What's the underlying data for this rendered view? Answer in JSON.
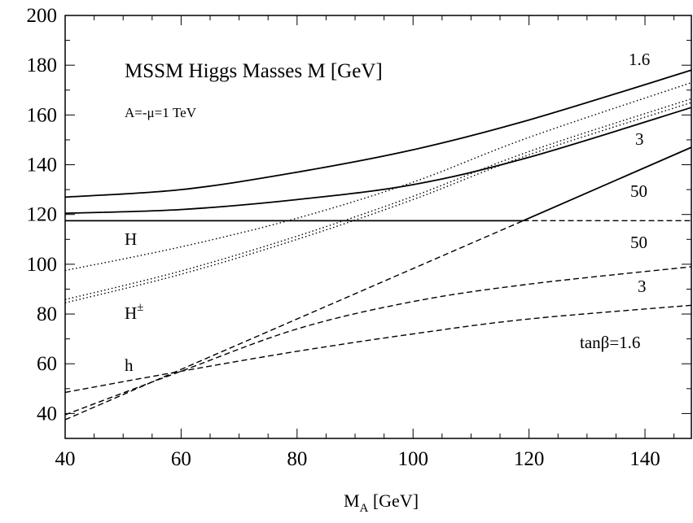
{
  "chart_data": {
    "type": "line",
    "title": "MSSM Higgs Masses M [GeV]",
    "subtitle": "A=-μ=1 TeV",
    "xlabel_main": "M",
    "xlabel_sub": "A",
    "xlabel_unit": " [GeV]",
    "xlim": [
      40,
      148
    ],
    "ylim": [
      30,
      200
    ],
    "x_ticks": [
      40,
      60,
      80,
      100,
      120,
      140
    ],
    "y_ticks": [
      40,
      60,
      80,
      100,
      120,
      140,
      160,
      180,
      200
    ],
    "x_minor_step": 5,
    "y_minor_step": 10,
    "series": [
      {
        "style": "solid",
        "points": [
          [
            40,
            127
          ],
          [
            60,
            130
          ],
          [
            80,
            137
          ],
          [
            100,
            146
          ],
          [
            120,
            158
          ],
          [
            148,
            178
          ]
        ]
      },
      {
        "style": "solid",
        "points": [
          [
            40,
            120.5
          ],
          [
            60,
            122
          ],
          [
            80,
            126
          ],
          [
            100,
            132
          ],
          [
            120,
            143
          ],
          [
            148,
            163
          ]
        ]
      },
      {
        "style": "solid",
        "points": [
          [
            40,
            117.5
          ],
          [
            119,
            117.5
          ]
        ]
      },
      {
        "style": "solid",
        "points": [
          [
            119,
            117.5
          ],
          [
            148,
            147
          ]
        ]
      },
      {
        "style": "dashed",
        "points": [
          [
            119,
            117.5
          ],
          [
            148,
            117.5
          ]
        ]
      },
      {
        "style": "dashed",
        "points": [
          [
            40,
            37.5
          ],
          [
            119,
            117.5
          ]
        ]
      },
      {
        "style": "dashed",
        "points": [
          [
            40,
            39.5
          ],
          [
            60,
            57
          ],
          [
            80,
            74
          ],
          [
            100,
            85
          ],
          [
            120,
            92
          ],
          [
            148,
            99
          ]
        ]
      },
      {
        "style": "dashed",
        "points": [
          [
            40,
            48.5
          ],
          [
            60,
            57
          ],
          [
            80,
            65
          ],
          [
            100,
            72
          ],
          [
            120,
            78
          ],
          [
            148,
            83.5
          ]
        ]
      },
      {
        "style": "dotted",
        "points": [
          [
            40,
            97.5
          ],
          [
            60,
            107
          ],
          [
            80,
            118.5
          ],
          [
            100,
            133
          ],
          [
            120,
            151
          ],
          [
            148,
            173
          ]
        ]
      },
      {
        "style": "dotted",
        "points": [
          [
            40,
            84.5
          ],
          [
            60,
            96
          ],
          [
            80,
            110
          ],
          [
            100,
            126
          ],
          [
            120,
            144
          ],
          [
            148,
            165
          ]
        ]
      },
      {
        "style": "dotted",
        "points": [
          [
            40,
            85.8
          ],
          [
            60,
            97.3
          ],
          [
            80,
            111.3
          ],
          [
            100,
            127.3
          ],
          [
            120,
            145.3
          ],
          [
            148,
            166.5
          ]
        ]
      }
    ],
    "annotations": {
      "curve_h_label": "H",
      "curve_hpm_label": "H",
      "curve_hpm_sup": "±",
      "curve_hlight_label": "h",
      "tb_16_top": "1.6",
      "tb_3_top": "3",
      "tb_50_top": "50",
      "tb_50_bottom": "50",
      "tb_3_bottom": "3",
      "tanbeta_label": "tanβ=1.6"
    }
  }
}
